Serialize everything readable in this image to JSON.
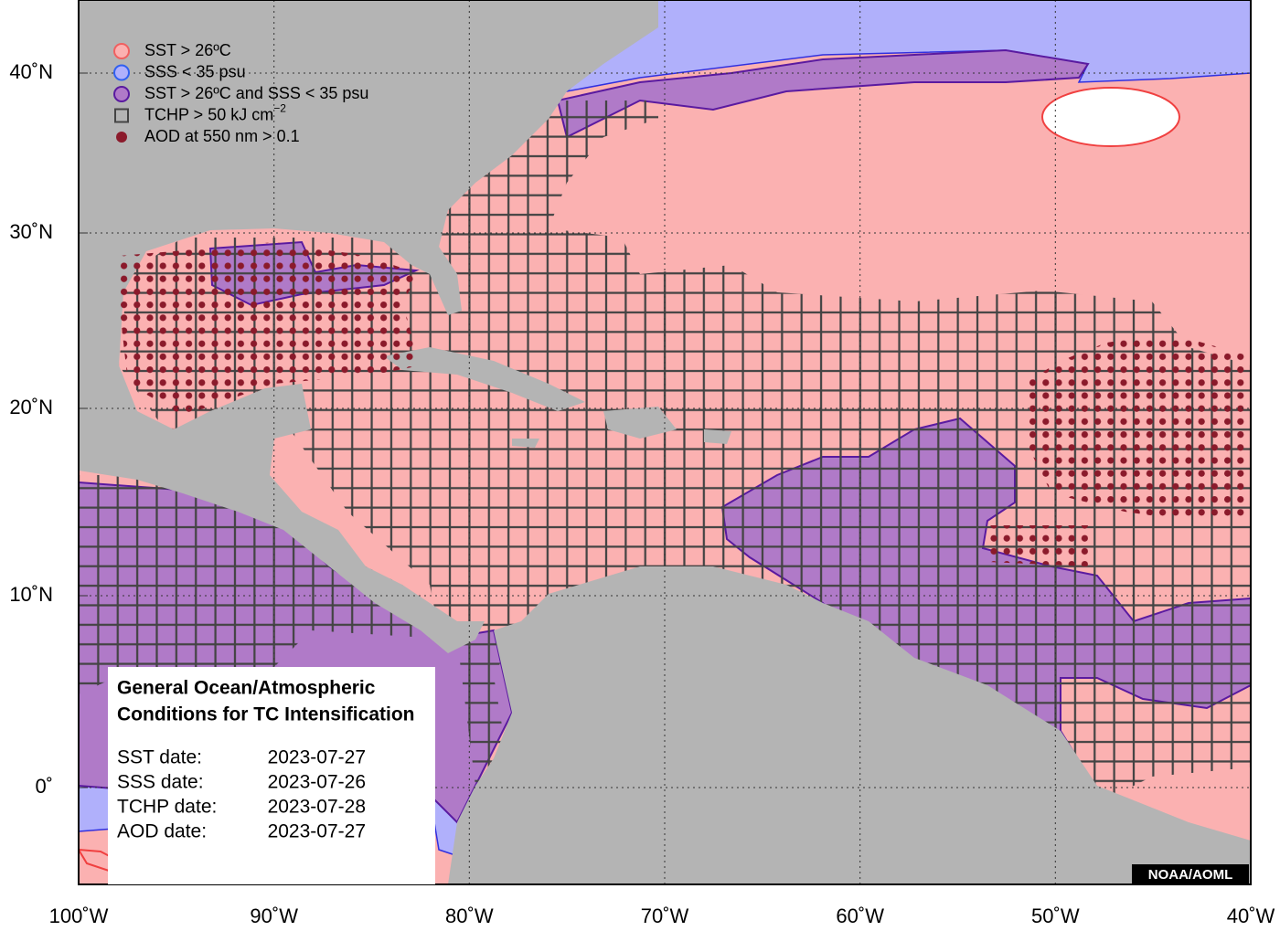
{
  "map": {
    "lat_labels": [
      "40˚N",
      "30˚N",
      "20˚N",
      "10˚N",
      "0˚"
    ],
    "lon_labels": [
      "100˚W",
      "90˚W",
      "80˚W",
      "70˚W",
      "60˚W",
      "50˚W",
      "40˚W"
    ],
    "legend": [
      {
        "label": "SST > 26ºC"
      },
      {
        "label": "SSS < 35 psu"
      },
      {
        "label": "SST > 26ºC and SSS < 35 psu"
      },
      {
        "label": "TCHP > 50 kJ cm",
        "sup": "−2"
      },
      {
        "label": "AOD at 550 nm > 0.1"
      }
    ],
    "info_box": {
      "title_lines": [
        "General Ocean/Atmospheric",
        "Conditions for TC Intensification"
      ],
      "dates": [
        {
          "label": "SST date:",
          "value": "2023-07-27"
        },
        {
          "label": "SSS date:",
          "value": "2023-07-26"
        },
        {
          "label": "TCHP date:",
          "value": "2023-07-28"
        },
        {
          "label": "AOD date:",
          "value": "2023-07-27"
        }
      ]
    },
    "credit": "NOAA/AOML"
  }
}
